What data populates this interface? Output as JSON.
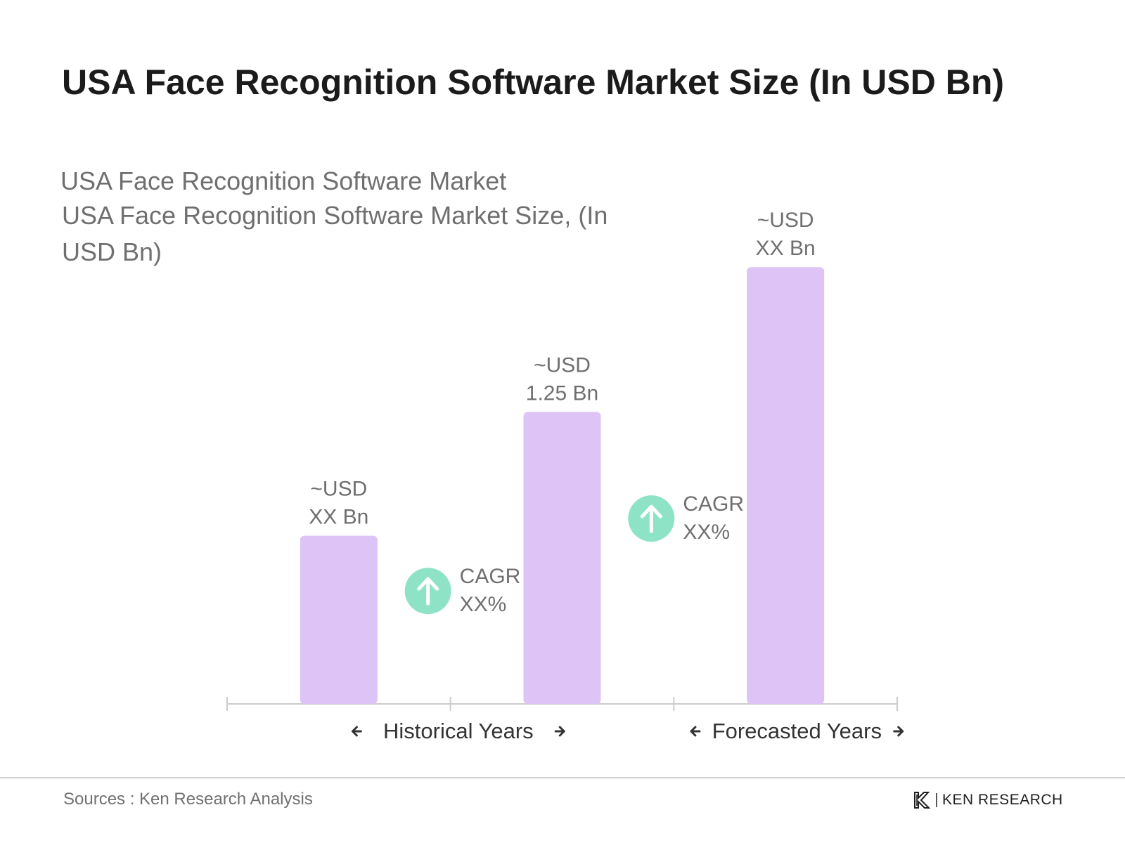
{
  "page": {
    "title": "USA Face Recognition Software Market Size (In USD Bn)",
    "sources": "Sources : Ken Research Analysis",
    "logo_text": "KEN RESEARCH"
  },
  "colors": {
    "bar": "#dec3f6",
    "cagr_circle": "#8ee3c6",
    "axis": "#cccccc",
    "label": "#6f6f6f",
    "period_label": "#333333"
  },
  "chart_data": {
    "type": "bar",
    "title": "USA Face Recognition Software Market",
    "subtitle": "USA Face Recognition Software Market Size, (In USD Bn)",
    "categories": [
      "",
      "",
      ""
    ],
    "values": [
      0.72,
      1.25,
      1.87
    ],
    "data_labels": [
      [
        "~USD",
        "XX Bn"
      ],
      [
        "~USD",
        "1.25 Bn"
      ],
      [
        "~USD",
        "XX Bn"
      ]
    ],
    "ylim": [
      0,
      2.0
    ],
    "grid": false,
    "cagr_annotations": [
      {
        "label": "CAGR",
        "value": "XX%",
        "between": [
          0,
          1
        ],
        "icon": "arrow-up-icon"
      },
      {
        "label": "CAGR",
        "value": "XX%",
        "between": [
          1,
          2
        ],
        "icon": "arrow-up-icon"
      }
    ],
    "periods": [
      {
        "label": "Historical Years"
      },
      {
        "label": "Forecasted Years"
      }
    ]
  }
}
